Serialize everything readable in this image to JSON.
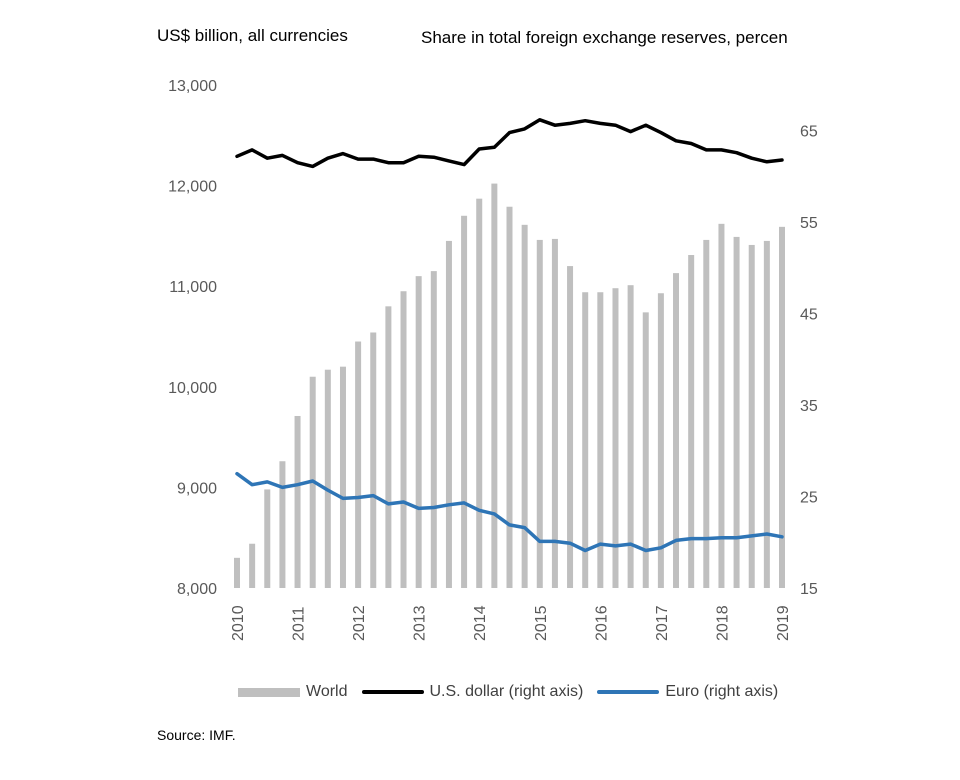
{
  "chart_data": {
    "type": "bar",
    "left_axis_title": "US$ billion, all currencies",
    "right_axis_title": "Share in total foreign exchange reserves, percen",
    "left_ylim": [
      8000,
      13000
    ],
    "left_ticks": [
      "8,000",
      "9,000",
      "10,000",
      "11,000",
      "12,000",
      "13,000"
    ],
    "left_tick_values": [
      8000,
      9000,
      10000,
      11000,
      12000,
      13000
    ],
    "right_ylim": [
      15,
      70
    ],
    "right_ticks": [
      "15",
      "25",
      "35",
      "45",
      "55",
      "65"
    ],
    "right_tick_values": [
      15,
      25,
      35,
      45,
      55,
      65
    ],
    "x_ticks": [
      "2010",
      "2011",
      "2012",
      "2013",
      "2014",
      "2015",
      "2016",
      "2017",
      "2018",
      "2019"
    ],
    "periods": [
      "2010Q1",
      "2010Q2",
      "2010Q3",
      "2010Q4",
      "2011Q1",
      "2011Q2",
      "2011Q3",
      "2011Q4",
      "2012Q1",
      "2012Q2",
      "2012Q3",
      "2012Q4",
      "2013Q1",
      "2013Q2",
      "2013Q3",
      "2013Q4",
      "2014Q1",
      "2014Q2",
      "2014Q3",
      "2014Q4",
      "2015Q1",
      "2015Q2",
      "2015Q3",
      "2015Q4",
      "2016Q1",
      "2016Q2",
      "2016Q3",
      "2016Q4",
      "2017Q1",
      "2017Q2",
      "2017Q3",
      "2017Q4",
      "2018Q1",
      "2018Q2",
      "2018Q3",
      "2018Q4",
      "2019Q1"
    ],
    "series": [
      {
        "name": "World",
        "kind": "bar",
        "axis": "left",
        "color": "#bfbfbf",
        "values": [
          8300,
          8440,
          8980,
          9260,
          9710,
          10100,
          10170,
          10200,
          10450,
          10540,
          10800,
          10950,
          11100,
          11150,
          11450,
          11700,
          11870,
          12020,
          11790,
          11610,
          11460,
          11470,
          11200,
          10940,
          10940,
          10980,
          11010,
          10740,
          10930,
          11130,
          11310,
          11460,
          11620,
          11490,
          11410,
          11450,
          11590
        ]
      },
      {
        "name": "U.S. dollar (right axis)",
        "kind": "line",
        "axis": "right",
        "color": "#000000",
        "values": [
          62.2,
          62.9,
          62.0,
          62.3,
          61.5,
          61.1,
          62.0,
          62.5,
          61.9,
          61.9,
          61.5,
          61.5,
          62.2,
          62.1,
          61.7,
          61.3,
          63.0,
          63.2,
          64.8,
          65.2,
          66.2,
          65.6,
          65.8,
          66.1,
          65.8,
          65.6,
          64.9,
          65.6,
          64.8,
          63.9,
          63.6,
          62.9,
          62.9,
          62.6,
          62.0,
          61.6,
          61.8
        ]
      },
      {
        "name": "Euro (right axis)",
        "kind": "line",
        "axis": "right",
        "color": "#2e75b6",
        "values": [
          27.5,
          26.3,
          26.6,
          26.0,
          26.3,
          26.7,
          25.7,
          24.8,
          24.9,
          25.1,
          24.2,
          24.4,
          23.7,
          23.8,
          24.1,
          24.3,
          23.5,
          23.1,
          21.9,
          21.6,
          20.1,
          20.1,
          19.9,
          19.1,
          19.8,
          19.6,
          19.8,
          19.1,
          19.4,
          20.2,
          20.4,
          20.4,
          20.5,
          20.5,
          20.7,
          20.9,
          20.6
        ]
      }
    ],
    "legend": [
      {
        "label": "World",
        "type": "bar",
        "color": "#bfbfbf"
      },
      {
        "label": "U.S. dollar (right axis)",
        "type": "line",
        "color": "#000000"
      },
      {
        "label": "Euro (right axis)",
        "type": "line",
        "color": "#2e75b6"
      }
    ],
    "legend_position": "bottom",
    "grid": false
  },
  "source": "Source: IMF."
}
